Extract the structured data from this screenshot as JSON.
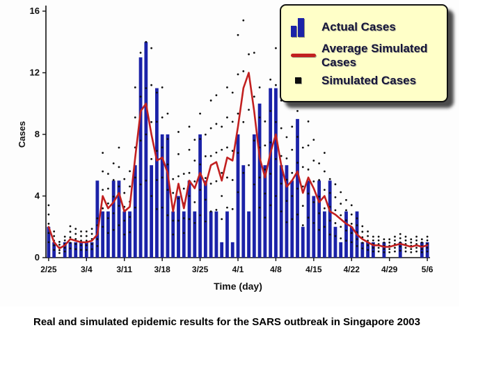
{
  "caption": "Real and simulated epidemic results for the SARS outbreak in Singapore 2003",
  "chart_data": {
    "type": "combo",
    "title": "",
    "xlabel": "Time (day)",
    "ylabel": "Cases",
    "ylim": [
      0,
      16
    ],
    "yticks": [
      0,
      4,
      8,
      12,
      16
    ],
    "n_days": 71,
    "xtick_labels": [
      "2/25",
      "3/4",
      "3/11",
      "3/18",
      "3/25",
      "4/1",
      "4/8",
      "4/15",
      "4/22",
      "4/29",
      "5/6"
    ],
    "xtick_positions": [
      0,
      7,
      14,
      21,
      28,
      35,
      42,
      49,
      56,
      63,
      70
    ],
    "grid": false,
    "legend_position": "top-right",
    "series": [
      {
        "name": "Actual Cases",
        "type": "bar",
        "color": "#1b22a8",
        "values": [
          2,
          1,
          0,
          1,
          1,
          1,
          1,
          1,
          1,
          5,
          3,
          3,
          5,
          5,
          3,
          3,
          6,
          13,
          14,
          6,
          11,
          8,
          8,
          3,
          4,
          3,
          5,
          3,
          8,
          5,
          3,
          3,
          1,
          3,
          1,
          8,
          6,
          3,
          8,
          10,
          6,
          11,
          11,
          6,
          6,
          5,
          9,
          2,
          5,
          4,
          5,
          3,
          5,
          2,
          1,
          3,
          2,
          3,
          1,
          1,
          1,
          0,
          1,
          0,
          0,
          1,
          0,
          0,
          0,
          1,
          1
        ]
      },
      {
        "name": "Average Simulated Cases",
        "type": "line",
        "color": "#c22020",
        "values": [
          2.0,
          1.0,
          0.6,
          0.8,
          1.2,
          1.1,
          1.0,
          1.0,
          1.1,
          1.5,
          4.0,
          3.2,
          3.6,
          4.2,
          3.0,
          3.3,
          6.5,
          9.5,
          10.0,
          8.0,
          6.3,
          6.5,
          5.5,
          3.0,
          4.8,
          3.2,
          5.0,
          4.5,
          5.5,
          4.7,
          6.0,
          6.2,
          5.0,
          6.5,
          6.3,
          8.5,
          11.0,
          12.0,
          9.5,
          6.5,
          5.2,
          6.8,
          8.0,
          6.0,
          4.6,
          5.0,
          5.6,
          4.2,
          5.2,
          4.5,
          3.6,
          4.0,
          3.0,
          2.8,
          2.5,
          2.2,
          2.0,
          1.5,
          1.2,
          1.0,
          0.8,
          0.8,
          0.7,
          0.7,
          0.8,
          0.9,
          0.8,
          0.7,
          0.8,
          0.7,
          0.8
        ]
      },
      {
        "name": "Simulated Cases",
        "type": "scatter",
        "color": "#101010",
        "dot_scales": [
          0.5,
          0.8,
          1.1,
          1.4,
          1.7
        ]
      }
    ]
  },
  "legend": {
    "entries": [
      "Actual Cases",
      "Average Simulated Cases",
      "Simulated Cases"
    ]
  }
}
